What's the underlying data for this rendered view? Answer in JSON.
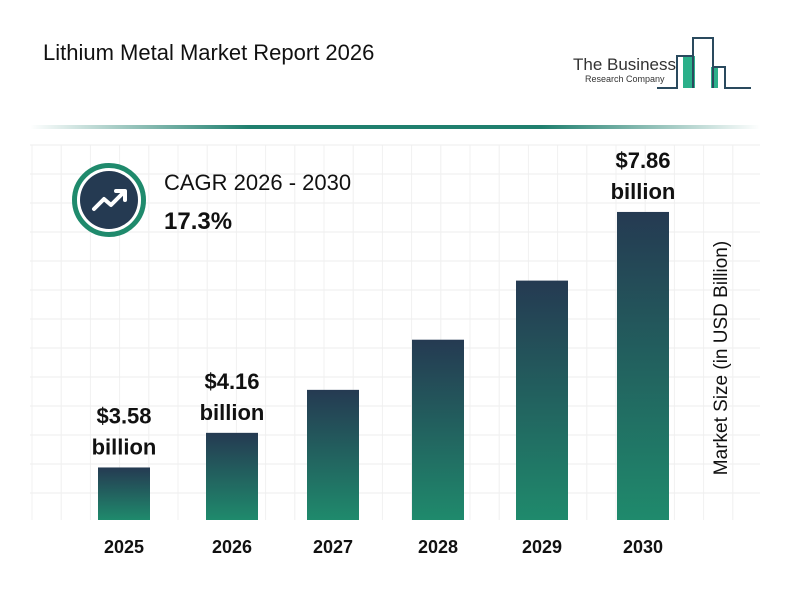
{
  "title": "Lithium Metal Market Report 2026",
  "logo": {
    "line1": "The Business",
    "line2": "Research Company"
  },
  "cagr": {
    "label": "CAGR 2026 - 2030",
    "value": "17.3%",
    "icon": "trending-up-icon"
  },
  "colors": {
    "bar_top": "#253a52",
    "bar_bottom": "#1f8a6c",
    "accent": "#1f8a6c"
  },
  "chart_data": {
    "type": "bar",
    "categories": [
      "2025",
      "2026",
      "2027",
      "2028",
      "2029",
      "2030"
    ],
    "values": [
      3.58,
      4.16,
      4.88,
      5.72,
      6.71,
      7.86
    ],
    "data_labels": [
      {
        "index": 0,
        "line1": "$3.58",
        "line2": "billion"
      },
      {
        "index": 1,
        "line1": "$4.16",
        "line2": "billion"
      },
      {
        "index": 5,
        "line1": "$7.86",
        "line2": "billion"
      }
    ],
    "ylabel": "Market Size (in USD Billion)",
    "xlabel": "",
    "grid": true
  }
}
